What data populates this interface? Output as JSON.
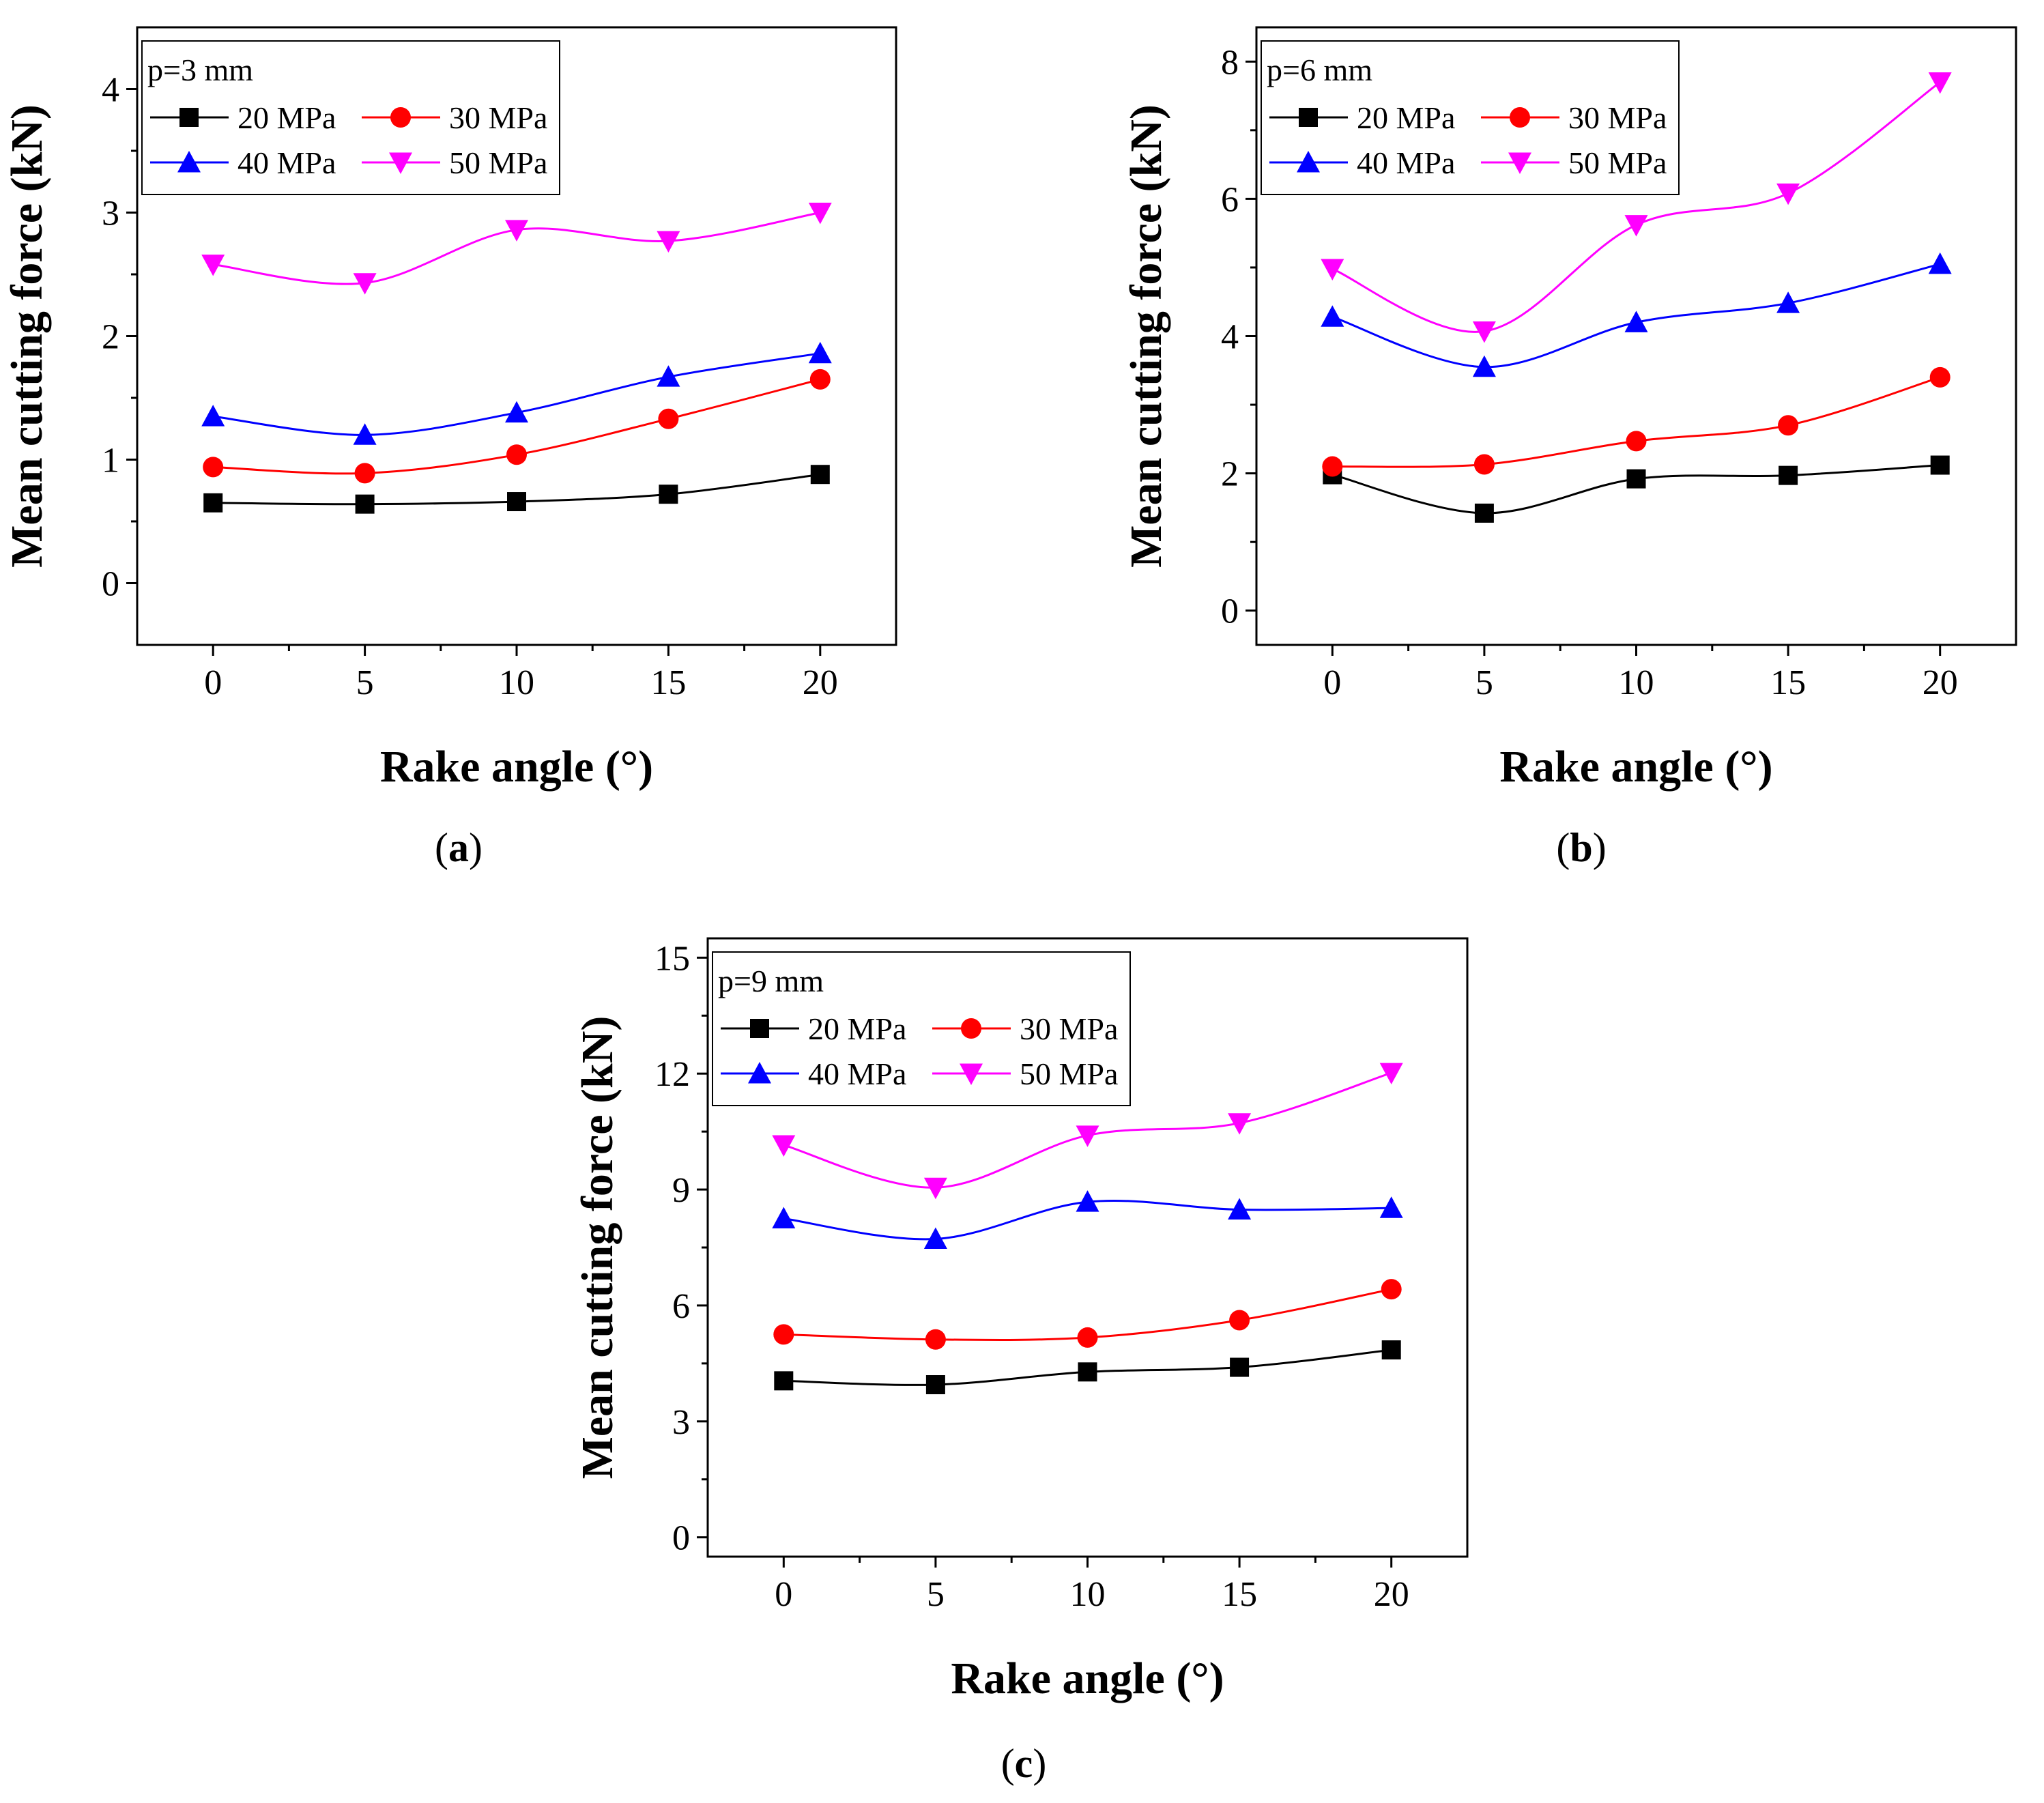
{
  "series_styles": [
    {
      "name": "20 MPa",
      "color": "#000000",
      "marker": "square"
    },
    {
      "name": "30 MPa",
      "color": "#ff0000",
      "marker": "circle"
    },
    {
      "name": "40 MPa",
      "color": "#0000ff",
      "marker": "triangle-up"
    },
    {
      "name": "50 MPa",
      "color": "#ff00ff",
      "marker": "triangle-down"
    }
  ],
  "chart_data": [
    {
      "panel_label": "a",
      "type": "scatter",
      "legend_title": "p=3 mm",
      "legend_position": "top-left",
      "xlabel": "Rake angle (°)",
      "ylabel": "Mean cutting force (kN)",
      "xlim": [
        -2.5,
        22.5
      ],
      "ylim": [
        -0.5,
        4.5
      ],
      "xticks": [
        0,
        5,
        10,
        15,
        20
      ],
      "yticks": [
        0,
        1,
        2,
        3,
        4
      ],
      "yminor": 0.5,
      "grid": false,
      "x": [
        0,
        5,
        10,
        15,
        20
      ],
      "series": [
        {
          "name": "20 MPa",
          "values": [
            0.65,
            0.64,
            0.66,
            0.72,
            0.88
          ]
        },
        {
          "name": "30 MPa",
          "values": [
            0.94,
            0.89,
            1.04,
            1.33,
            1.65
          ]
        },
        {
          "name": "40 MPa",
          "values": [
            1.35,
            1.2,
            1.38,
            1.67,
            1.86
          ]
        },
        {
          "name": "50 MPa",
          "values": [
            2.58,
            2.43,
            2.86,
            2.77,
            3.0
          ]
        }
      ]
    },
    {
      "panel_label": "b",
      "type": "scatter",
      "legend_title": "p=6 mm",
      "legend_position": "top-left",
      "xlabel": "Rake angle (°)",
      "ylabel": "Mean cutting force (kN)",
      "xlim": [
        -2.5,
        22.5
      ],
      "ylim": [
        -0.5,
        8.5
      ],
      "xticks": [
        0,
        5,
        10,
        15,
        20
      ],
      "yticks": [
        0,
        2,
        4,
        6,
        8
      ],
      "yminor": 1,
      "grid": false,
      "x": [
        0,
        5,
        10,
        15,
        20
      ],
      "series": [
        {
          "name": "20 MPa",
          "values": [
            1.98,
            1.42,
            1.92,
            1.97,
            2.12
          ]
        },
        {
          "name": "30 MPa",
          "values": [
            2.1,
            2.13,
            2.47,
            2.7,
            3.4
          ]
        },
        {
          "name": "40 MPa",
          "values": [
            4.28,
            3.55,
            4.2,
            4.48,
            5.05
          ]
        },
        {
          "name": "50 MPa",
          "values": [
            4.98,
            4.07,
            5.62,
            6.08,
            7.7
          ]
        }
      ]
    },
    {
      "panel_label": "c",
      "type": "scatter",
      "legend_title": "p=9 mm",
      "legend_position": "top-left",
      "xlabel": "Rake angle (°)",
      "ylabel": "Mean cutting force (kN)",
      "xlim": [
        -2.5,
        22.5
      ],
      "ylim": [
        -0.5,
        15.5
      ],
      "xticks": [
        0,
        5,
        10,
        15,
        20
      ],
      "yticks": [
        0,
        3,
        6,
        9,
        12,
        15
      ],
      "yminor": 1.5,
      "grid": false,
      "x": [
        0,
        5,
        10,
        15,
        20
      ],
      "series": [
        {
          "name": "20 MPa",
          "values": [
            4.05,
            3.95,
            4.28,
            4.4,
            4.85
          ]
        },
        {
          "name": "30 MPa",
          "values": [
            5.25,
            5.12,
            5.17,
            5.62,
            6.42
          ]
        },
        {
          "name": "40 MPa",
          "values": [
            8.25,
            7.72,
            8.68,
            8.48,
            8.52
          ]
        },
        {
          "name": "50 MPa",
          "values": [
            10.15,
            9.05,
            10.4,
            10.72,
            12.02
          ]
        }
      ]
    }
  ]
}
